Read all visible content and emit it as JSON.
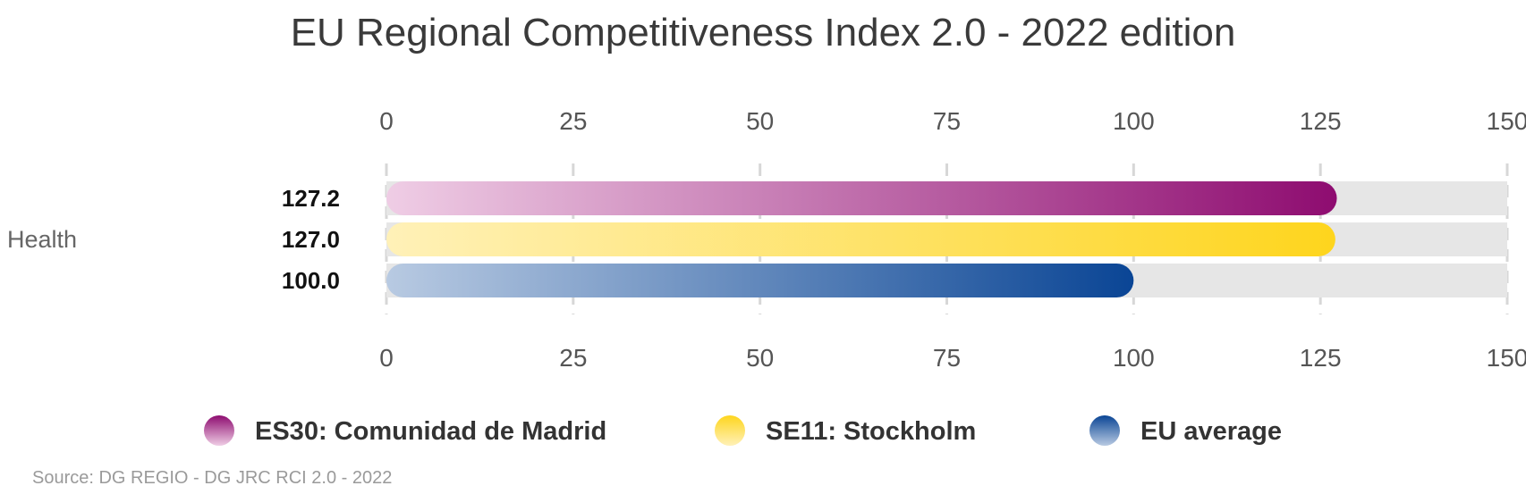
{
  "chart_data": {
    "type": "bar",
    "orientation": "horizontal",
    "title": "EU Regional Competitiveness Index 2.0 - 2022 edition",
    "categories": [
      "Health"
    ],
    "series": [
      {
        "name": "ES30: Comunidad de Madrid",
        "values": [
          127.2
        ],
        "value_labels": [
          "127.2"
        ],
        "color": "#8e0c70",
        "color_light": "#efcde5"
      },
      {
        "name": "SE11: Stockholm",
        "values": [
          127.0
        ],
        "value_labels": [
          "127.0"
        ],
        "color": "#fed51d",
        "color_light": "#fff1b8"
      },
      {
        "name": "EU average",
        "values": [
          100.0
        ],
        "value_labels": [
          "100.0"
        ],
        "color": "#0a4595",
        "color_light": "#b8cae2"
      }
    ],
    "xlim": [
      0,
      150
    ],
    "xticks": [
      "0",
      "25",
      "50",
      "75",
      "100",
      "125",
      "150"
    ],
    "grid": true,
    "legend": "bottom"
  },
  "source": "Source: DG REGIO - DG JRC RCI 2.0 - 2022"
}
